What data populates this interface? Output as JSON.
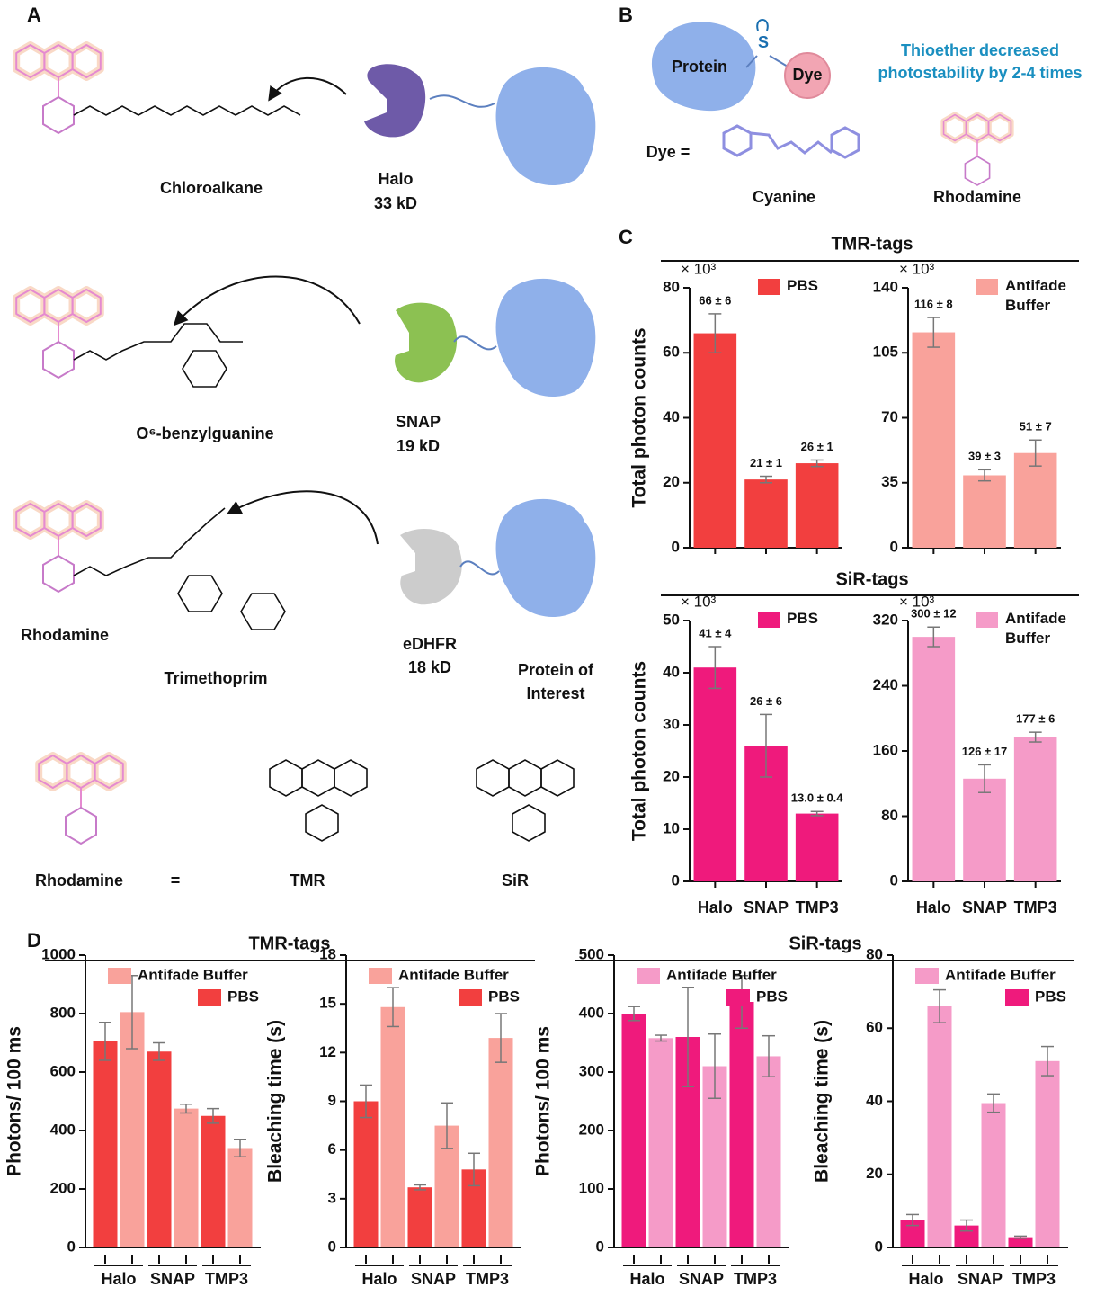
{
  "panels": {
    "A": {
      "label": "A",
      "chloroalkane": "Chloroalkane",
      "halo": "Halo",
      "halo_size": "33 kD",
      "benzylguanine": "O⁶-benzylguanine",
      "snap": "SNAP",
      "snap_size": "19 kD",
      "rhodamine": "Rhodamine",
      "trimethoprim": "Trimethoprim",
      "edhfr": "eDHFR",
      "edhfr_size": "18 kD",
      "protein": "Protein of Interest",
      "rhodamine_def": "Rhodamine",
      "equals": "=",
      "tmr": "TMR",
      "sir": "SiR"
    },
    "B": {
      "label": "B",
      "protein": "Protein",
      "sulfur": "S",
      "dye": "Dye",
      "note": "Thioether decreased photostability by 2-4 times",
      "dye_def": "Dye =",
      "cyanine": "Cyanine",
      "rhodamine": "Rhodamine"
    },
    "C": {
      "label": "C",
      "tmr_header": "TMR-tags",
      "sir_header": "SiR-tags"
    },
    "D": {
      "label": "D",
      "tmr_header": "TMR-tags",
      "sir_header": "SiR-tags"
    }
  },
  "chart_data": [
    {
      "type": "bar",
      "y_label": "Total photon counts",
      "y_multiplier": "× 10³",
      "categories": [
        null,
        null,
        null
      ],
      "series": [
        {
          "name": "PBS",
          "color": "#f23f3f",
          "values": [
            66,
            21,
            26
          ],
          "errors": [
            6,
            1,
            1
          ],
          "value_labels": [
            "66 ± 6",
            "21 ± 1",
            "26 ± 1"
          ]
        }
      ],
      "ylim": [
        0,
        80
      ],
      "yticks": [
        0,
        20,
        40,
        60,
        80
      ]
    },
    {
      "type": "bar",
      "y_multiplier": "× 10³",
      "categories": [
        null,
        null,
        null
      ],
      "series": [
        {
          "name": "Antifade Buffer",
          "color": "#f9a29b",
          "values": [
            116,
            39,
            51
          ],
          "errors": [
            8,
            3,
            7
          ],
          "value_labels": [
            "116 ± 8",
            "39 ± 3",
            "51 ± 7"
          ]
        }
      ],
      "ylim": [
        0,
        140
      ],
      "yticks": [
        0,
        35,
        70,
        105,
        140
      ]
    },
    {
      "type": "bar",
      "y_label": "Total photon counts",
      "y_multiplier": "× 10³",
      "categories": [
        "Halo",
        "SNAP",
        "TMP3"
      ],
      "series": [
        {
          "name": "PBS",
          "color": "#ef1a7c",
          "values": [
            41,
            26,
            13
          ],
          "errors": [
            4,
            6,
            0.4
          ],
          "value_labels": [
            "41 ± 4",
            "26 ± 6",
            "13.0 ± 0.4"
          ]
        }
      ],
      "ylim": [
        0,
        50
      ],
      "yticks": [
        0,
        10,
        20,
        30,
        40,
        50
      ]
    },
    {
      "type": "bar",
      "y_multiplier": "× 10³",
      "categories": [
        "Halo",
        "SNAP",
        "TMP3"
      ],
      "series": [
        {
          "name": "Antifade Buffer",
          "color": "#f59bc8",
          "values": [
            300,
            126,
            177
          ],
          "errors": [
            12,
            17,
            6
          ],
          "value_labels": [
            "300 ± 12",
            "126 ± 17",
            "177 ± 6"
          ]
        }
      ],
      "ylim": [
        0,
        320
      ],
      "yticks": [
        0,
        80,
        160,
        240,
        320
      ]
    },
    {
      "type": "bar",
      "y_label": "Photons/ 100 ms",
      "categories": [
        "Halo",
        "SNAP",
        "TMP3"
      ],
      "series": [
        {
          "name": "PBS",
          "color": "#f23f3f",
          "values": [
            705,
            670,
            450
          ],
          "errors": [
            65,
            30,
            25
          ]
        },
        {
          "name": "Antifade Buffer",
          "color": "#f9a29b",
          "values": [
            805,
            475,
            340
          ],
          "errors": [
            125,
            15,
            30
          ]
        }
      ],
      "ylim": [
        0,
        1000
      ],
      "yticks": [
        0,
        200,
        400,
        600,
        800,
        1000
      ]
    },
    {
      "type": "bar",
      "y_label": "Bleaching time (s)",
      "categories": [
        "Halo",
        "SNAP",
        "TMP3"
      ],
      "series": [
        {
          "name": "PBS",
          "color": "#f23f3f",
          "values": [
            9.0,
            3.7,
            4.8
          ],
          "errors": [
            1.0,
            0.15,
            1.0
          ]
        },
        {
          "name": "Antifade Buffer",
          "color": "#f9a29b",
          "values": [
            14.8,
            7.5,
            12.9
          ],
          "errors": [
            1.2,
            1.4,
            1.5
          ]
        }
      ],
      "ylim": [
        0,
        18
      ],
      "yticks": [
        0,
        3,
        6,
        9,
        12,
        15,
        18
      ]
    },
    {
      "type": "bar",
      "y_label": "Photons/ 100 ms",
      "categories": [
        "Halo",
        "SNAP",
        "TMP3"
      ],
      "series": [
        {
          "name": "PBS",
          "color": "#ef1a7c",
          "values": [
            400,
            360,
            420
          ],
          "errors": [
            12,
            85,
            45
          ]
        },
        {
          "name": "Antifade Buffer",
          "color": "#f59bc8",
          "values": [
            358,
            310,
            327
          ],
          "errors": [
            5,
            55,
            35
          ]
        }
      ],
      "ylim": [
        0,
        500
      ],
      "yticks": [
        0,
        100,
        200,
        300,
        400,
        500
      ]
    },
    {
      "type": "bar",
      "y_label": "Bleaching time (s)",
      "categories": [
        "Halo",
        "SNAP",
        "TMP3"
      ],
      "series": [
        {
          "name": "PBS",
          "color": "#ef1a7c",
          "values": [
            7.5,
            6.0,
            2.8
          ],
          "errors": [
            1.5,
            1.5,
            0.3
          ]
        },
        {
          "name": "Antifade Buffer",
          "color": "#f59bc8",
          "values": [
            66,
            39.5,
            51
          ],
          "errors": [
            4.5,
            2.5,
            4
          ]
        }
      ],
      "ylim": [
        0,
        80
      ],
      "yticks": [
        0,
        20,
        40,
        60,
        80
      ]
    }
  ]
}
